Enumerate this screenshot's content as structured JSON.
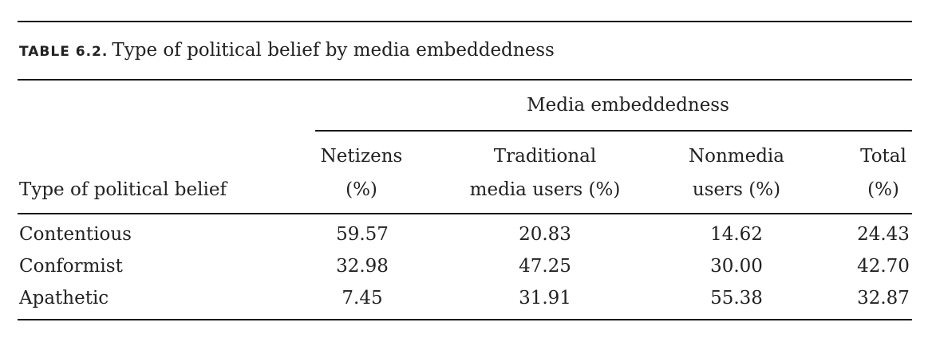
{
  "caption": {
    "label": "TABLE 6.2.",
    "title": "Type of political belief by media embeddedness"
  },
  "spanner": "Media embeddedness",
  "row_header": "Type of political belief",
  "columns": [
    {
      "line1": "Netizens",
      "line2": "(%)"
    },
    {
      "line1": "Traditional",
      "line2": "media users (%)"
    },
    {
      "line1": "Nonmedia",
      "line2": "users (%)"
    },
    {
      "line1": "Total",
      "line2": "(%)"
    }
  ],
  "rows": [
    {
      "label": "Contentious",
      "values": [
        "59.57",
        "20.83",
        "14.62",
        "24.43"
      ]
    },
    {
      "label": "Conformist",
      "values": [
        "32.98",
        "47.25",
        "30.00",
        "42.70"
      ]
    },
    {
      "label": "Apathetic",
      "values": [
        "7.45",
        "31.91",
        "55.38",
        "32.87"
      ]
    }
  ]
}
